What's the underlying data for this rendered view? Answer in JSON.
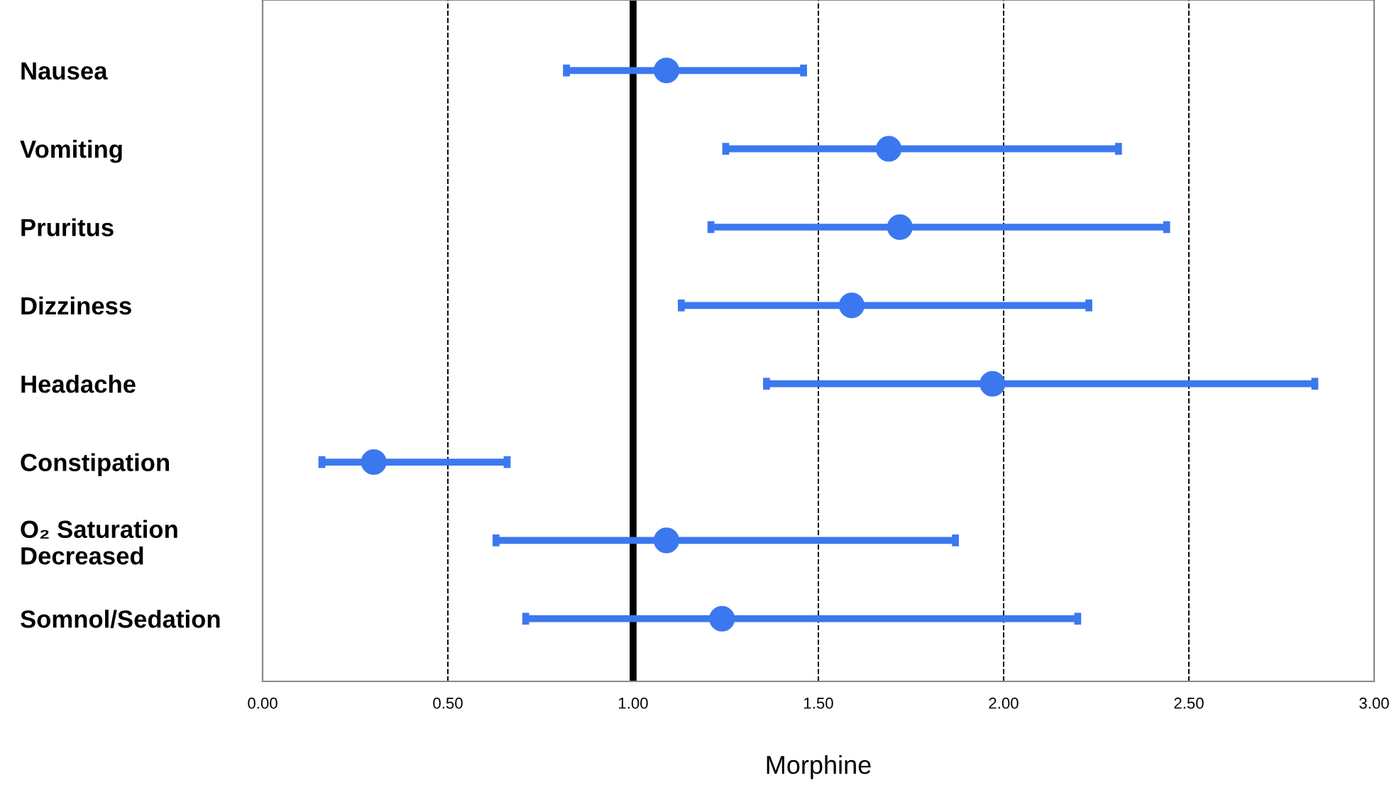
{
  "chart_data": {
    "type": "scatter",
    "orientation": "horizontal",
    "xlabel": "Morphine",
    "categories": [
      "Nausea",
      "Vomiting",
      "Pruritus",
      "Dizziness",
      "Headache",
      "Constipation",
      "O₂ Saturation\nDecreased",
      "Somnol/Sedation"
    ],
    "series": [
      {
        "color": "#3b78f0",
        "values": [
          1.09,
          1.69,
          1.72,
          1.59,
          1.97,
          0.3,
          1.09,
          1.24
        ],
        "errors": [
          [
            0.82,
            1.46
          ],
          [
            1.25,
            2.31
          ],
          [
            1.21,
            2.44
          ],
          [
            1.13,
            2.23
          ],
          [
            1.36,
            2.84
          ],
          [
            0.16,
            0.66
          ],
          [
            0.63,
            1.87
          ],
          [
            0.71,
            2.2
          ]
        ]
      }
    ],
    "xlim": [
      0,
      3
    ],
    "xticks": [
      {
        "value": 0,
        "label": "0.00"
      },
      {
        "value": 0.5,
        "label": "0.50"
      },
      {
        "value": 1,
        "label": "1.00"
      },
      {
        "value": 1.5,
        "label": "1.50"
      },
      {
        "value": 2,
        "label": "2.00"
      },
      {
        "value": 2.5,
        "label": "2.50"
      },
      {
        "value": 3,
        "label": "3.00"
      }
    ],
    "grid": "x",
    "marker": "circle",
    "legend": false,
    "ref_lines": [
      {
        "axis": "x",
        "value": 1,
        "color": "#000000",
        "line_style": "solid"
      }
    ]
  }
}
